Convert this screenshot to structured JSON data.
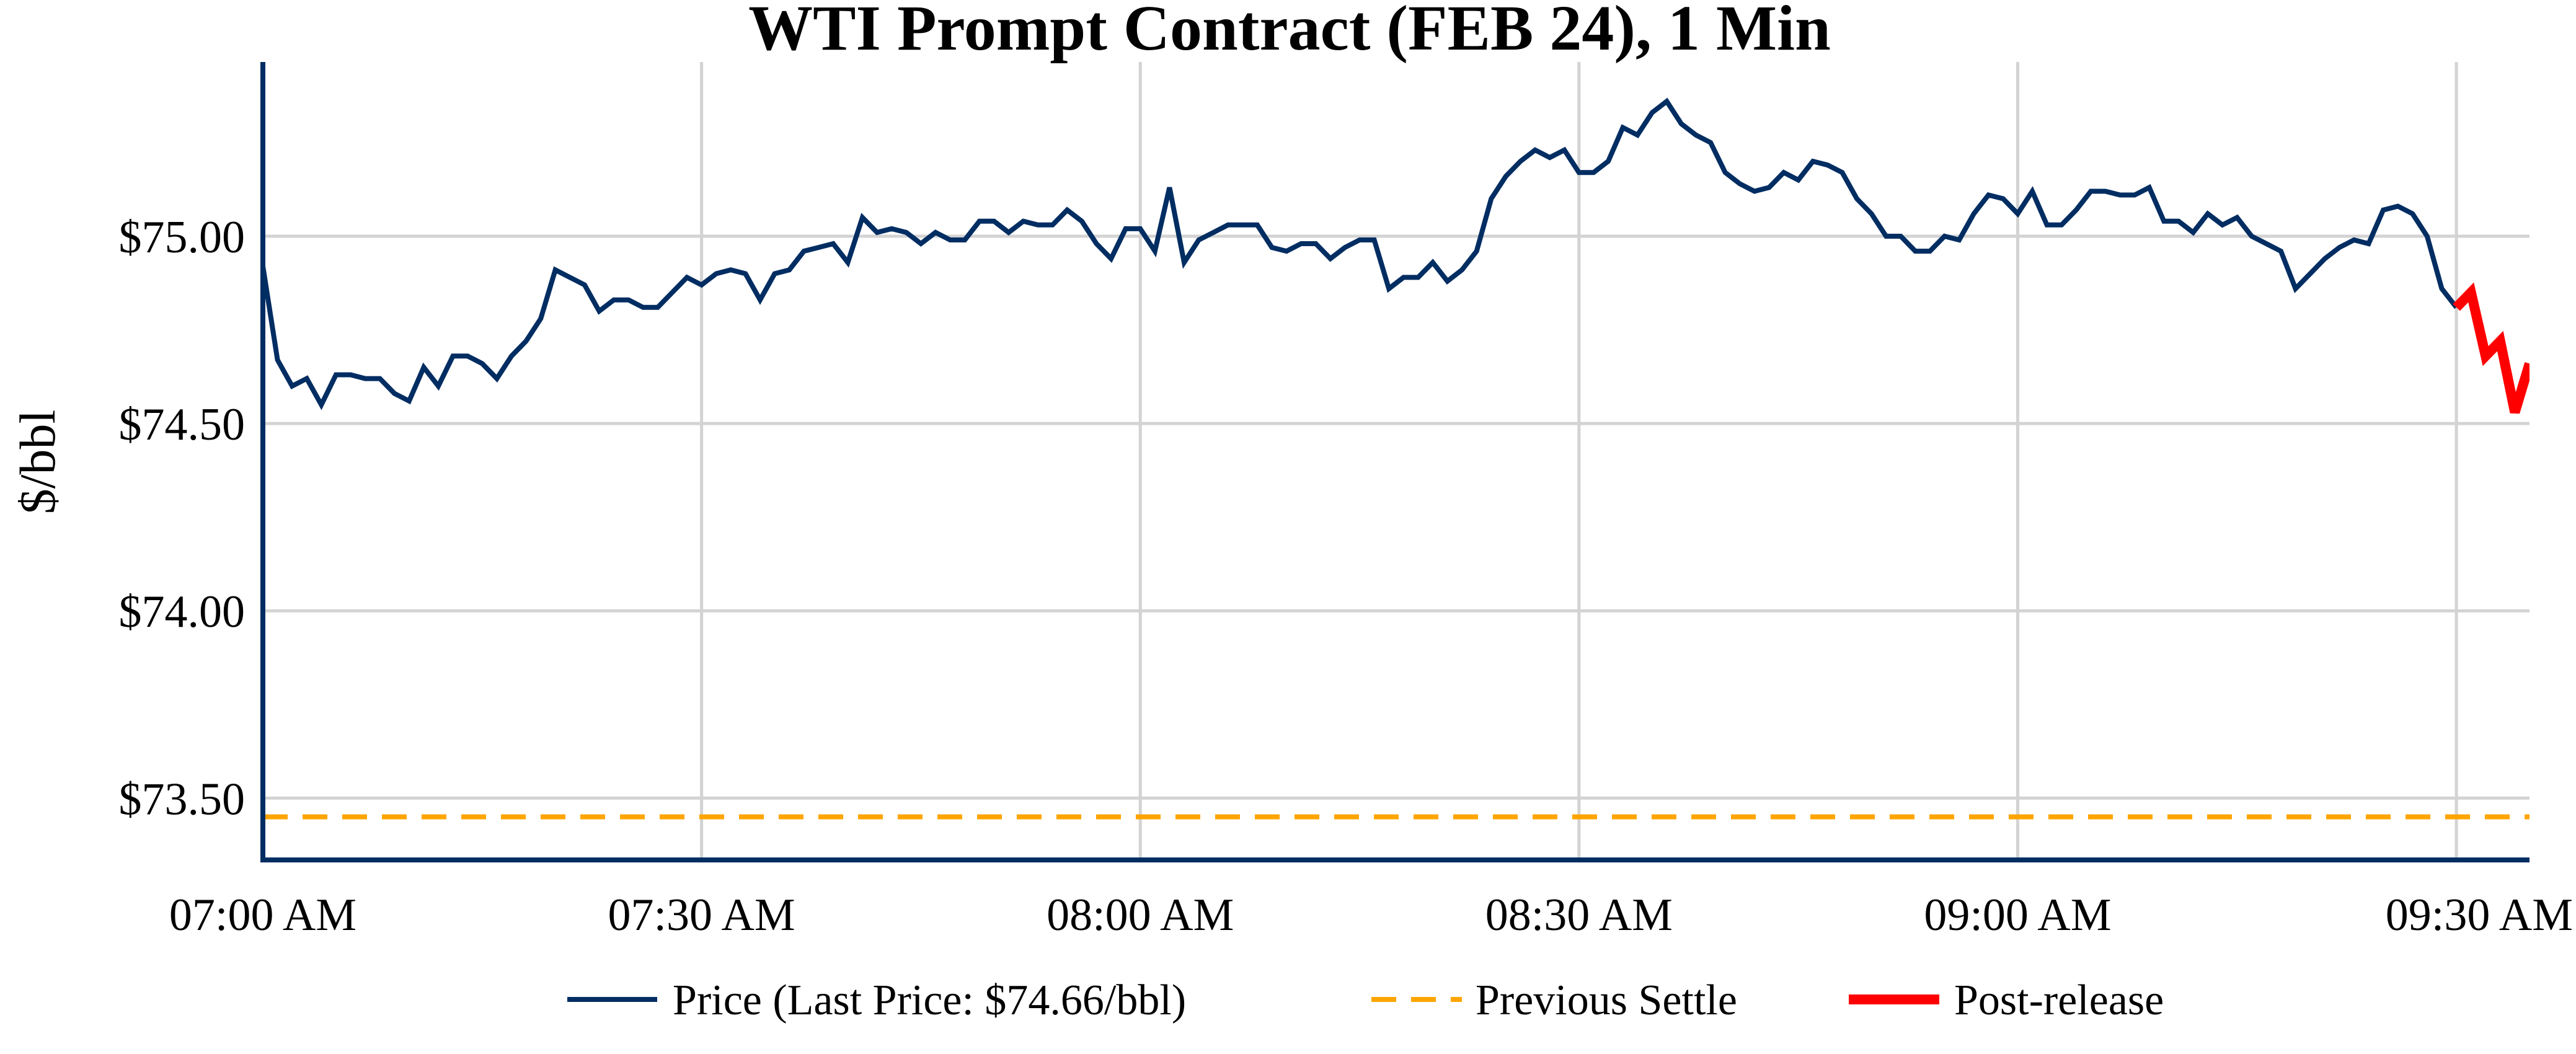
{
  "chart_data": {
    "type": "line",
    "title": "WTI Prompt Contract (FEB 24), 1 Min",
    "xlabel": "",
    "ylabel": "$/bbl",
    "xlim": [
      "07:00",
      "09:35"
    ],
    "ylim": [
      73.335,
      75.465
    ],
    "grid": true,
    "legend_position": "bottom",
    "x_ticks": [
      {
        "value": "07:00",
        "label": "07:00 AM"
      },
      {
        "value": "07:30",
        "label": "07:30 AM"
      },
      {
        "value": "08:00",
        "label": "08:00 AM"
      },
      {
        "value": "08:30",
        "label": "08:30 AM"
      },
      {
        "value": "09:00",
        "label": "09:00 AM"
      },
      {
        "value": "09:30",
        "label": "09:30 AM"
      }
    ],
    "y_ticks": [
      {
        "value": 73.5,
        "label": "$73.50"
      },
      {
        "value": 74.0,
        "label": "$74.00"
      },
      {
        "value": 74.5,
        "label": "$74.50"
      },
      {
        "value": 75.0,
        "label": "$75.00"
      }
    ],
    "series": [
      {
        "name": "Price (Last Price: $74.66/bbl)",
        "color": "#002d62",
        "style": "solid",
        "x": [
          "07:00",
          "07:01",
          "07:02",
          "07:03",
          "07:04",
          "07:05",
          "07:06",
          "07:07",
          "07:08",
          "07:09",
          "07:10",
          "07:11",
          "07:12",
          "07:13",
          "07:14",
          "07:15",
          "07:16",
          "07:17",
          "07:18",
          "07:19",
          "07:20",
          "07:21",
          "07:22",
          "07:23",
          "07:24",
          "07:25",
          "07:26",
          "07:27",
          "07:28",
          "07:29",
          "07:30",
          "07:31",
          "07:32",
          "07:33",
          "07:34",
          "07:35",
          "07:36",
          "07:37",
          "07:38",
          "07:39",
          "07:40",
          "07:41",
          "07:42",
          "07:43",
          "07:44",
          "07:45",
          "07:46",
          "07:47",
          "07:48",
          "07:49",
          "07:50",
          "07:51",
          "07:52",
          "07:53",
          "07:54",
          "07:55",
          "07:56",
          "07:57",
          "07:58",
          "07:59",
          "08:00",
          "08:01",
          "08:02",
          "08:03",
          "08:04",
          "08:05",
          "08:06",
          "08:07",
          "08:08",
          "08:09",
          "08:10",
          "08:11",
          "08:12",
          "08:13",
          "08:14",
          "08:15",
          "08:16",
          "08:17",
          "08:18",
          "08:19",
          "08:20",
          "08:21",
          "08:22",
          "08:23",
          "08:24",
          "08:25",
          "08:26",
          "08:27",
          "08:28",
          "08:29",
          "08:30",
          "08:31",
          "08:32",
          "08:33",
          "08:34",
          "08:35",
          "08:36",
          "08:37",
          "08:38",
          "08:39",
          "08:40",
          "08:41",
          "08:42",
          "08:43",
          "08:44",
          "08:45",
          "08:46",
          "08:47",
          "08:48",
          "08:49",
          "08:50",
          "08:51",
          "08:52",
          "08:53",
          "08:54",
          "08:55",
          "08:56",
          "08:57",
          "08:58",
          "08:59",
          "09:00",
          "09:01",
          "09:02",
          "09:03",
          "09:04",
          "09:05",
          "09:06",
          "09:07",
          "09:08",
          "09:09",
          "09:10",
          "09:11",
          "09:12",
          "09:13",
          "09:14",
          "09:15",
          "09:16",
          "09:17",
          "09:18",
          "09:19",
          "09:20",
          "09:21",
          "09:22",
          "09:23",
          "09:24",
          "09:25",
          "09:26",
          "09:27",
          "09:28",
          "09:29",
          "09:30"
        ],
        "y": [
          74.92,
          74.67,
          74.6,
          74.62,
          74.55,
          74.63,
          74.63,
          74.62,
          74.62,
          74.58,
          74.56,
          74.65,
          74.6,
          74.68,
          74.68,
          74.66,
          74.62,
          74.68,
          74.72,
          74.78,
          74.91,
          74.89,
          74.87,
          74.8,
          74.83,
          74.83,
          74.81,
          74.81,
          74.85,
          74.89,
          74.87,
          74.9,
          74.91,
          74.9,
          74.83,
          74.9,
          74.91,
          74.96,
          74.97,
          74.98,
          74.93,
          75.05,
          75.01,
          75.02,
          75.01,
          74.98,
          75.01,
          74.99,
          74.99,
          75.04,
          75.04,
          75.01,
          75.04,
          75.03,
          75.03,
          75.07,
          75.04,
          74.98,
          74.94,
          75.02,
          75.02,
          74.96,
          75.13,
          74.93,
          74.99,
          75.01,
          75.03,
          75.03,
          75.03,
          74.97,
          74.96,
          74.98,
          74.98,
          74.94,
          74.97,
          74.99,
          74.99,
          74.86,
          74.89,
          74.89,
          74.93,
          74.88,
          74.91,
          74.96,
          75.1,
          75.16,
          75.2,
          75.23,
          75.21,
          75.23,
          75.17,
          75.17,
          75.2,
          75.29,
          75.27,
          75.33,
          75.36,
          75.3,
          75.27,
          75.25,
          75.17,
          75.14,
          75.12,
          75.13,
          75.17,
          75.15,
          75.2,
          75.19,
          75.17,
          75.1,
          75.06,
          75.0,
          75.0,
          74.96,
          74.96,
          75.0,
          74.99,
          75.06,
          75.11,
          75.1,
          75.06,
          75.12,
          75.03,
          75.03,
          75.07,
          75.12,
          75.12,
          75.11,
          75.11,
          75.13,
          75.04,
          75.04,
          75.01,
          75.06,
          75.03,
          75.05,
          75.0,
          74.98,
          74.96,
          74.86,
          74.9,
          74.94,
          74.97,
          74.99,
          74.98,
          75.07,
          75.08,
          75.06,
          75.0,
          74.86,
          74.81
        ]
      },
      {
        "name": "Previous Settle",
        "color": "#ffa500",
        "style": "dashed",
        "value": 73.45
      },
      {
        "name": "Post-release",
        "color": "#ff0000",
        "style": "solid-thick",
        "x": [
          "09:30",
          "09:31",
          "09:32",
          "09:33",
          "09:34",
          "09:35"
        ],
        "y": [
          74.81,
          74.85,
          74.68,
          74.72,
          74.53,
          74.66
        ]
      }
    ]
  }
}
